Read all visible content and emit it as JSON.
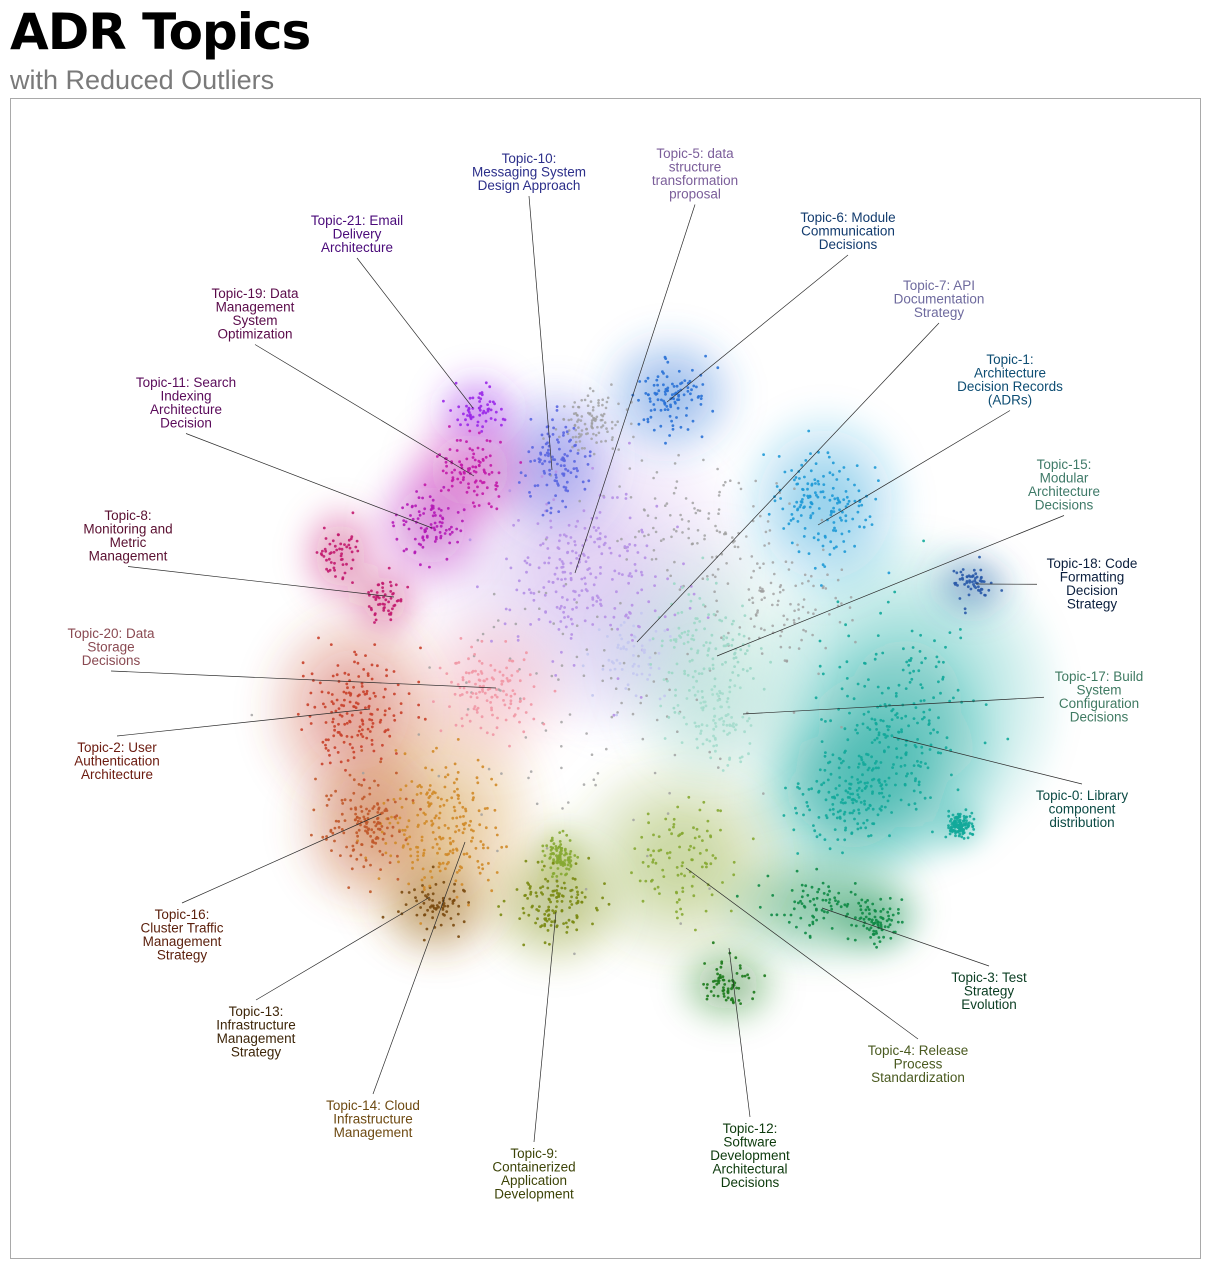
{
  "header": {
    "title": "ADR Topics",
    "subtitle": "with Reduced Outliers"
  },
  "chart_data": {
    "type": "scatter",
    "title": "ADR Topics",
    "subtitle": "with Reduced Outliers",
    "xlabel": "",
    "ylabel": "",
    "grid": false,
    "legend": "none",
    "outlier_color": "#9e9e9e",
    "topics": [
      {
        "id": 0,
        "label": "Topic-0: Library component distribution",
        "lines": [
          "Topic-0: Library",
          "component",
          "distribution"
        ],
        "color": "#12a89a",
        "label_color": "#0b4a44"
      },
      {
        "id": 1,
        "label": "Topic-1: Architecture Decision Records (ADRs)",
        "lines": [
          "Topic-1:",
          "Architecture",
          "Decision Records",
          "(ADRs)"
        ],
        "color": "#1f9ad6",
        "label_color": "#0d4d73"
      },
      {
        "id": 2,
        "label": "Topic-2: User Authentication Architecture",
        "lines": [
          "Topic-2: User",
          "Authentication",
          "Architecture"
        ],
        "color": "#c8402a",
        "label_color": "#6b1a0e"
      },
      {
        "id": 3,
        "label": "Topic-3: Test Strategy Evolution",
        "lines": [
          "Topic-3: Test",
          "Strategy",
          "Evolution"
        ],
        "color": "#0e8a45",
        "label_color": "#0a3d22"
      },
      {
        "id": 4,
        "label": "Topic-4: Release Process Standardization",
        "lines": [
          "Topic-4: Release",
          "Process",
          "Standardization"
        ],
        "color": "#86a832",
        "label_color": "#4a5a20"
      },
      {
        "id": 5,
        "label": "Topic-5: data structure transformation proposal",
        "lines": [
          "Topic-5: data",
          "structure",
          "transformation",
          "proposal"
        ],
        "color": "#b794e6",
        "label_color": "#7b5e9a"
      },
      {
        "id": 6,
        "label": "Topic-6: Module Communication Decisions",
        "lines": [
          "Topic-6: Module",
          "Communication",
          "Decisions"
        ],
        "color": "#2a72d6",
        "label_color": "#123b6e"
      },
      {
        "id": 7,
        "label": "Topic-7: API Documentation Strategy",
        "lines": [
          "Topic-7: API",
          "Documentation",
          "Strategy"
        ],
        "color": "#c5c8ef",
        "label_color": "#6e6a9e"
      },
      {
        "id": 8,
        "label": "Topic-8: Monitoring and Metric Management",
        "lines": [
          "Topic-8:",
          "Monitoring and",
          "Metric",
          "Management"
        ],
        "color": "#c21a6e",
        "label_color": "#5a0f30"
      },
      {
        "id": 9,
        "label": "Topic-9: Containerized Application Development",
        "lines": [
          "Topic-9:",
          "Containerized",
          "Application",
          "Development"
        ],
        "color": "#7a8a12",
        "label_color": "#3d4408"
      },
      {
        "id": 10,
        "label": "Topic-10: Messaging System Design Approach",
        "lines": [
          "Topic-10:",
          "Messaging System",
          "Design Approach"
        ],
        "color": "#5a66e0",
        "label_color": "#2c2f8a"
      },
      {
        "id": 11,
        "label": "Topic-11: Search Indexing Architecture Decision",
        "lines": [
          "Topic-11: Search",
          "Indexing",
          "Architecture",
          "Decision"
        ],
        "color": "#b41ab6",
        "label_color": "#5a0a5a"
      },
      {
        "id": 12,
        "label": "Topic-12: Software Development Architectural Decisions",
        "lines": [
          "Topic-12:",
          "Software",
          "Development",
          "Architectural",
          "Decisions"
        ],
        "color": "#1c7a1c",
        "label_color": "#0c3a0c"
      },
      {
        "id": 13,
        "label": "Topic-13: Infrastructure Management Strategy",
        "lines": [
          "Topic-13:",
          "Infrastructure",
          "Management",
          "Strategy"
        ],
        "color": "#7a4a10",
        "label_color": "#3d2508"
      },
      {
        "id": 14,
        "label": "Topic-14: Cloud Infrastructure Management",
        "lines": [
          "Topic-14: Cloud",
          "Infrastructure",
          "Management"
        ],
        "color": "#d08a28",
        "label_color": "#6e4a12"
      },
      {
        "id": 15,
        "label": "Topic-15: Modular Architecture Decisions",
        "lines": [
          "Topic-15:",
          "Modular",
          "Architecture",
          "Decisions"
        ],
        "color": "#9fd8c8",
        "label_color": "#3f7a68"
      },
      {
        "id": 16,
        "label": "Topic-16: Cluster Traffic Management Strategy",
        "lines": [
          "Topic-16:",
          "Cluster Traffic",
          "Management",
          "Strategy"
        ],
        "color": "#c0582a",
        "label_color": "#5a1e0a"
      },
      {
        "id": 17,
        "label": "Topic-17: Build System Configuration Decisions",
        "lines": [
          "Topic-17: Build",
          "System",
          "Configuration",
          "Decisions"
        ],
        "color": "#a6dccd",
        "label_color": "#3f7a62"
      },
      {
        "id": 18,
        "label": "Topic-18: Code Formatting Decision Strategy",
        "lines": [
          "Topic-18: Code",
          "Formatting",
          "Decision",
          "Strategy"
        ],
        "color": "#2a5aa8",
        "label_color": "#0a1e3d"
      },
      {
        "id": 19,
        "label": "Topic-19: Data Management System Optimization",
        "lines": [
          "Topic-19: Data",
          "Management",
          "System",
          "Optimization"
        ],
        "color": "#c21aa8",
        "label_color": "#5a0a4a"
      },
      {
        "id": 20,
        "label": "Topic-20: Data Storage Decisions",
        "lines": [
          "Topic-20: Data",
          "Storage",
          "Decisions"
        ],
        "color": "#f09aa8",
        "label_color": "#8a4a52"
      },
      {
        "id": 21,
        "label": "Topic-21: Email Delivery Architecture",
        "lines": [
          "Topic-21: Email",
          "Delivery",
          "Architecture"
        ],
        "color": "#9a28e8",
        "label_color": "#4a0a7a"
      }
    ]
  }
}
